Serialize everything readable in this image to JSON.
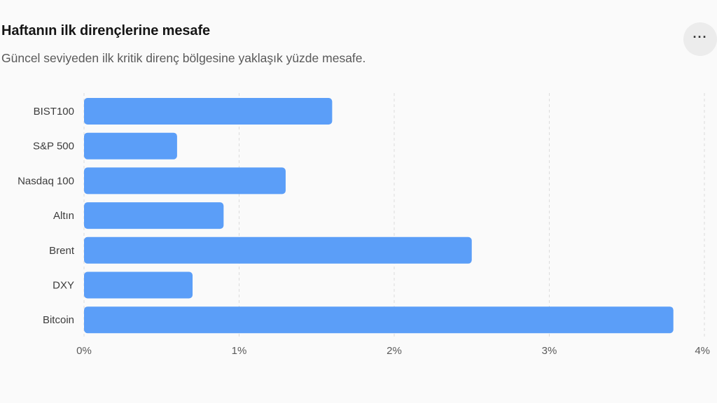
{
  "header": {
    "title": "Haftanın ilk dirençlerine mesafe",
    "subtitle": "Güncel seviyeden ilk kritik direnç bölgesine yaklaşık yüzde mesafe.",
    "more_label": "···"
  },
  "chart_data": {
    "type": "bar",
    "orientation": "horizontal",
    "categories": [
      "BIST100",
      "S&P 500",
      "Nasdaq 100",
      "Altın",
      "Brent",
      "DXY",
      "Bitcoin"
    ],
    "values": [
      1.6,
      0.6,
      1.3,
      0.9,
      2.5,
      0.7,
      3.8
    ],
    "xlim": [
      0,
      4
    ],
    "xticks": [
      0,
      1,
      2,
      3,
      4
    ],
    "xtick_labels": [
      "0%",
      "1%",
      "2%",
      "3%",
      "4%"
    ],
    "grid": "vertical dashed",
    "colors": {
      "bar": "#5b9ef8",
      "grid": "#dcdcdc"
    }
  }
}
